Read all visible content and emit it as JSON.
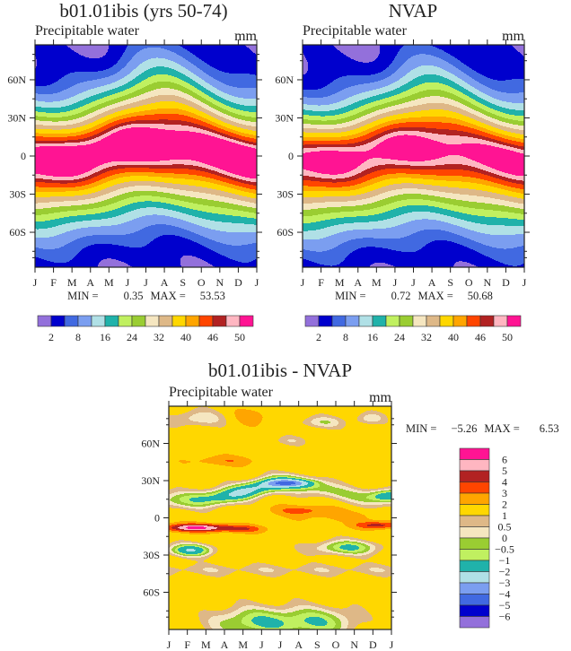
{
  "chart_data": [
    {
      "type": "heatmap",
      "title": "b01.01ibis (yrs 50-74)",
      "subtitle": "Precipitable water",
      "units": "mm",
      "x_ticks": [
        "J",
        "F",
        "M",
        "A",
        "M",
        "J",
        "J",
        "A",
        "S",
        "O",
        "N",
        "D",
        "J"
      ],
      "y_ticks": [
        "60N",
        "30N",
        "0",
        "30S",
        "60S"
      ],
      "min_label": "MIN =",
      "min": "0.35",
      "max_label": "MAX =",
      "max": "53.53",
      "colorbar": {
        "orientation": "horizontal",
        "labels": [
          "2",
          "8",
          "16",
          "24",
          "32",
          "40",
          "46",
          "50"
        ],
        "colors": [
          "#9370db",
          "#0000cd",
          "#4169e1",
          "#7b9ef0",
          "#b0e0e6",
          "#20b2aa",
          "#c0f060",
          "#9acd32",
          "#f5e6c0",
          "#deb887",
          "#ffd700",
          "#ffa500",
          "#ff4500",
          "#b22222",
          "#ffb6c1",
          "#ff1493"
        ]
      }
    },
    {
      "type": "heatmap",
      "title": "NVAP",
      "subtitle": "Precipitable water",
      "units": "mm",
      "x_ticks": [
        "J",
        "F",
        "M",
        "A",
        "M",
        "J",
        "J",
        "A",
        "S",
        "O",
        "N",
        "D",
        "J"
      ],
      "y_ticks": [
        "60N",
        "30N",
        "0",
        "30S",
        "60S"
      ],
      "min_label": "MIN =",
      "min": "0.72",
      "max_label": "MAX =",
      "max": "50.68",
      "colorbar": {
        "orientation": "horizontal",
        "labels": [
          "2",
          "8",
          "16",
          "24",
          "32",
          "40",
          "46",
          "50"
        ],
        "colors": [
          "#9370db",
          "#0000cd",
          "#4169e1",
          "#7b9ef0",
          "#b0e0e6",
          "#20b2aa",
          "#c0f060",
          "#9acd32",
          "#f5e6c0",
          "#deb887",
          "#ffd700",
          "#ffa500",
          "#ff4500",
          "#b22222",
          "#ffb6c1",
          "#ff1493"
        ]
      }
    },
    {
      "type": "heatmap",
      "title": "b01.01ibis - NVAP",
      "subtitle": "Precipitable water",
      "units": "mm",
      "x_ticks": [
        "J",
        "F",
        "M",
        "A",
        "M",
        "J",
        "J",
        "A",
        "S",
        "O",
        "N",
        "D",
        "J"
      ],
      "y_ticks": [
        "60N",
        "30N",
        "0",
        "30S",
        "60S"
      ],
      "min_label": "MIN =",
      "min": "-5.26",
      "max_label": "MAX =",
      "max": "6.53",
      "colorbar": {
        "orientation": "vertical",
        "labels": [
          "6",
          "5",
          "4",
          "3",
          "2",
          "1",
          "0.5",
          "0",
          "-0.5",
          "-1",
          "-2",
          "-3",
          "-4",
          "-5",
          "-6"
        ],
        "colors": [
          "#ff1493",
          "#ffb6c1",
          "#b22222",
          "#ff4500",
          "#ffa500",
          "#ffd700",
          "#deb887",
          "#f5e6c0",
          "#9acd32",
          "#c0f060",
          "#20b2aa",
          "#b0e0e6",
          "#7b9ef0",
          "#4169e1",
          "#0000cd",
          "#9370db"
        ]
      }
    }
  ]
}
